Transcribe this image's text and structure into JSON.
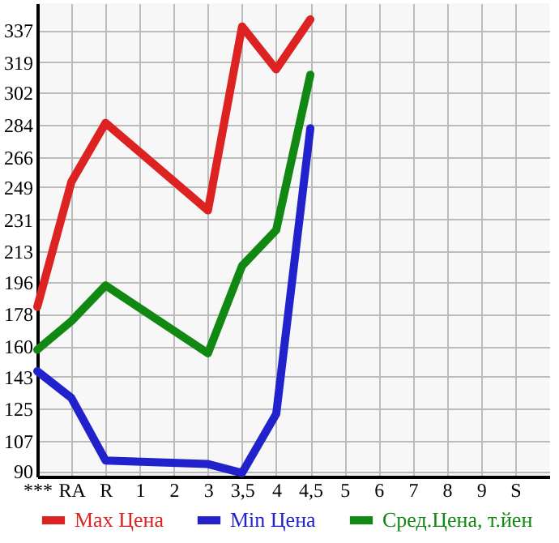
{
  "chart_data": {
    "type": "line",
    "categories": [
      "***",
      "RA",
      "R",
      "1",
      "2",
      "3",
      "3,5",
      "4",
      "4,5",
      "5",
      "6",
      "7",
      "8",
      "9",
      "S"
    ],
    "series": [
      {
        "name": "Max Цена",
        "color": "#dd2222",
        "values": [
          182,
          252,
          285,
          null,
          null,
          236,
          339,
          315,
          343,
          null,
          null,
          null,
          null,
          null,
          null
        ]
      },
      {
        "name": "Min Цена",
        "color": "#2222cc",
        "values": [
          146,
          131,
          96,
          null,
          null,
          94,
          89,
          122,
          282,
          null,
          null,
          null,
          null,
          null,
          null
        ]
      },
      {
        "name": "Сред.Цена, т.йен",
        "color": "#118811",
        "values": [
          158,
          174,
          194,
          null,
          null,
          156,
          205,
          225,
          312,
          null,
          null,
          null,
          null,
          null,
          null
        ]
      }
    ],
    "ylim": [
      87,
      352
    ],
    "yticks": [
      90,
      107,
      125,
      143,
      160,
      178,
      196,
      213,
      231,
      249,
      266,
      284,
      302,
      319,
      337
    ],
    "grid": true,
    "legend": "bottom",
    "marker": "none",
    "line_style": "solid"
  }
}
